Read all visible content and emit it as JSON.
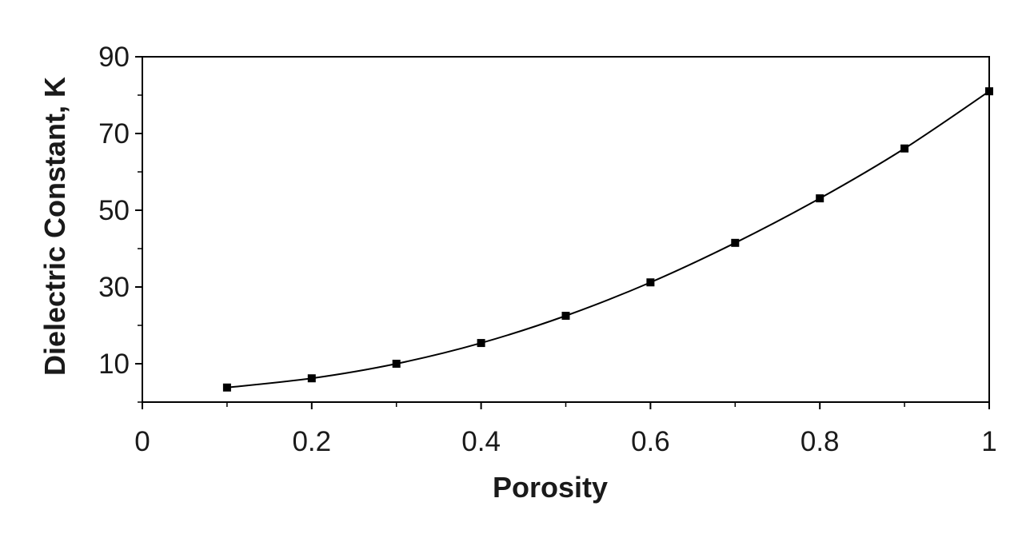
{
  "chart_data": {
    "type": "line",
    "title": "",
    "xlabel": "Porosity",
    "ylabel": "Dielectric Constant, K",
    "xlim": [
      0,
      1
    ],
    "ylim": [
      0,
      90
    ],
    "x_ticks": [
      0,
      0.2,
      0.4,
      0.6,
      0.8,
      1
    ],
    "x_tick_labels": [
      "0",
      "0.2",
      "0.4",
      "0.6",
      "0.8",
      "1"
    ],
    "y_ticks": [
      10,
      30,
      50,
      70,
      90
    ],
    "y_tick_labels": [
      "10",
      "30",
      "50",
      "70",
      "90"
    ],
    "y_minor_ticks": [
      0,
      20,
      40,
      60,
      80
    ],
    "x_minor_ticks": [
      0.1,
      0.3,
      0.5,
      0.7,
      0.9
    ],
    "grid": false,
    "legend": "none",
    "marker": "square",
    "line_color": "#000000",
    "series": [
      {
        "x": [
          0.1,
          0.2,
          0.3,
          0.4,
          0.5,
          0.6,
          0.7,
          0.8,
          0.9,
          1.0
        ],
        "values": [
          3.8,
          6.2,
          10.0,
          15.4,
          22.5,
          31.2,
          41.5,
          53.1,
          66.1,
          81.0
        ]
      }
    ]
  }
}
